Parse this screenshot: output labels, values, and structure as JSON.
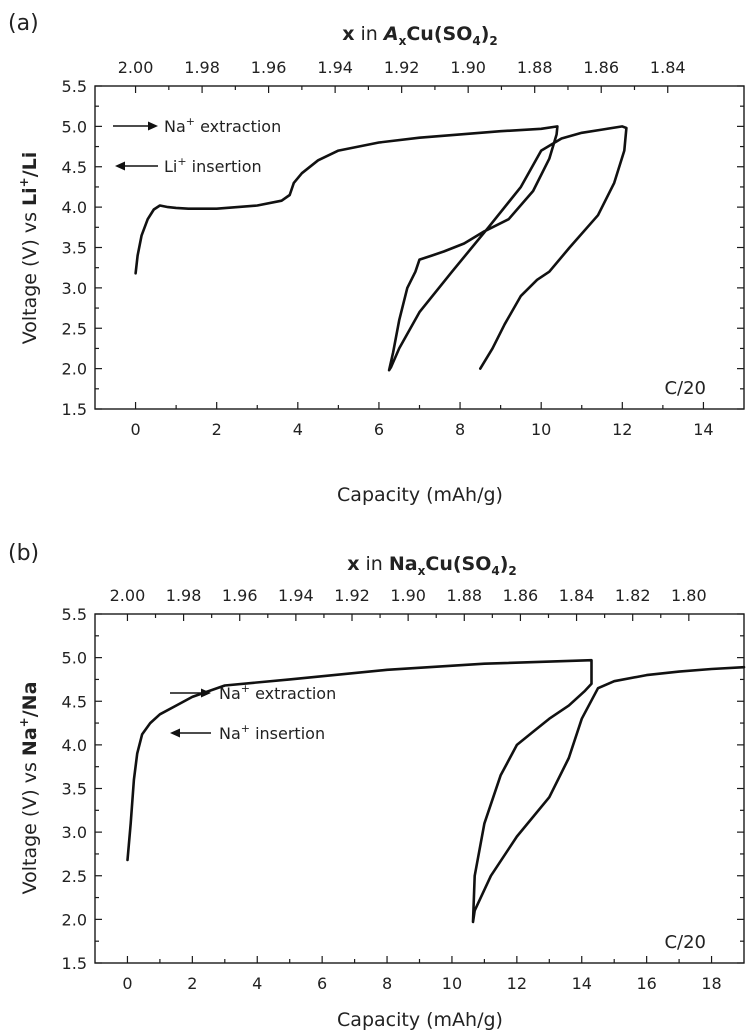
{
  "chart_data": [
    {
      "type": "line",
      "panel_label": "(a)",
      "xlabel": "Capacity (mAh/g)",
      "ylabel": {
        "prefix": "Voltage (V) vs ",
        "ion": "Li",
        "sup": "+",
        "suffix": "/Li"
      },
      "xlim": [
        -1.0,
        15.0
      ],
      "ylim": [
        1.5,
        5.5
      ],
      "x_ticks": [
        0,
        2,
        4,
        6,
        8,
        10,
        12,
        14
      ],
      "y_ticks": [
        1.5,
        2.0,
        2.5,
        3.0,
        3.5,
        4.0,
        4.5,
        5.0,
        5.5
      ],
      "top_axis": {
        "title_prefix": "x",
        "title_in": " in ",
        "title_ion": "A",
        "title_sub": "x",
        "title_rest": "Cu(SO",
        "title_sub2": "4",
        "title_close": ")",
        "title_sub3": "2",
        "ticks": [
          "2.00",
          "1.98",
          "1.96",
          "1.94",
          "1.92",
          "1.90",
          "1.88",
          "1.86",
          "1.84"
        ],
        "tick_positions": [
          0.0,
          1.64,
          3.28,
          4.92,
          6.56,
          8.2,
          9.84,
          11.48,
          13.12
        ]
      },
      "legend": [
        {
          "direction": "right",
          "ion": "Na",
          "sup": "+",
          "text": " extraction"
        },
        {
          "direction": "left",
          "ion": "Li",
          "sup": "+",
          "text": " insertion"
        }
      ],
      "legend_position": "top-left",
      "rate_label": "C/20",
      "series": [
        {
          "x": [
            0.0,
            0.05,
            0.15,
            0.3,
            0.45,
            0.6,
            0.8,
            1.0,
            1.3,
            2.0,
            3.0,
            3.6,
            3.8,
            3.9,
            4.1,
            4.5,
            5.0,
            6.0,
            7.0,
            8.0,
            9.0,
            10.0,
            10.4,
            10.38,
            10.2,
            9.8,
            9.2,
            8.6,
            8.1,
            7.6,
            7.3,
            7.0,
            6.9,
            6.7,
            6.5,
            6.35,
            6.25,
            6.3,
            6.5,
            7.0,
            7.8,
            8.7,
            9.5,
            10.0,
            10.5,
            11.0,
            11.5,
            12.0,
            12.1,
            12.05,
            11.8,
            11.4,
            10.7,
            10.2,
            9.9,
            9.5,
            9.1,
            8.8,
            8.5
          ],
          "y": [
            3.18,
            3.4,
            3.65,
            3.85,
            3.97,
            4.02,
            4.0,
            3.99,
            3.98,
            3.98,
            4.02,
            4.08,
            4.15,
            4.3,
            4.42,
            4.58,
            4.7,
            4.8,
            4.86,
            4.9,
            4.94,
            4.97,
            5.0,
            4.9,
            4.6,
            4.2,
            3.85,
            3.7,
            3.55,
            3.45,
            3.4,
            3.35,
            3.2,
            3.0,
            2.6,
            2.2,
            1.98,
            2.02,
            2.25,
            2.7,
            3.2,
            3.75,
            4.25,
            4.7,
            4.85,
            4.92,
            4.96,
            5.0,
            4.98,
            4.7,
            4.3,
            3.9,
            3.5,
            3.2,
            3.1,
            2.9,
            2.55,
            2.25,
            2.0
          ]
        }
      ]
    },
    {
      "type": "line",
      "panel_label": "(b)",
      "xlabel": "Capacity (mAh/g)",
      "ylabel": {
        "prefix": "Voltage (V) vs ",
        "ion": "Na",
        "sup": "+",
        "suffix": "/Na"
      },
      "xlim": [
        -1.0,
        19.0
      ],
      "ylim": [
        1.5,
        5.5
      ],
      "x_ticks": [
        0,
        2,
        4,
        6,
        8,
        10,
        12,
        14,
        16,
        18
      ],
      "y_ticks": [
        1.5,
        2.0,
        2.5,
        3.0,
        3.5,
        4.0,
        4.5,
        5.0,
        5.5
      ],
      "top_axis": {
        "title_prefix": "x",
        "title_in": " in ",
        "title_ion": "Na",
        "title_sub": "x",
        "title_rest": "Cu(SO",
        "title_sub2": "4",
        "title_close": ")",
        "title_sub3": "2",
        "ticks": [
          "2.00",
          "1.98",
          "1.96",
          "1.94",
          "1.92",
          "1.90",
          "1.88",
          "1.86",
          "1.84",
          "1.82",
          "1.80"
        ],
        "tick_positions": [
          0.0,
          1.73,
          3.46,
          5.19,
          6.92,
          8.65,
          10.38,
          12.11,
          13.84,
          15.57,
          17.3
        ]
      },
      "legend": [
        {
          "direction": "right",
          "ion": "Na",
          "sup": "+",
          "text": " extraction"
        },
        {
          "direction": "left",
          "ion": "Na",
          "sup": "+",
          "text": " insertion"
        }
      ],
      "legend_position": "top-left",
      "rate_label": "C/20",
      "series": [
        {
          "x": [
            0.0,
            0.1,
            0.2,
            0.3,
            0.45,
            0.7,
            1.0,
            1.5,
            2.0,
            3.0,
            5.0,
            8.0,
            11.0,
            14.3,
            14.3,
            14.1,
            13.6,
            13.0,
            12.5,
            12.0,
            11.5,
            11.0,
            10.7,
            10.65,
            10.7,
            11.2,
            12.0,
            13.0,
            13.6,
            14.0,
            14.5,
            15.0,
            16.0,
            17.0,
            18.0,
            19.0
          ],
          "y": [
            2.68,
            3.1,
            3.6,
            3.9,
            4.12,
            4.25,
            4.35,
            4.45,
            4.55,
            4.68,
            4.75,
            4.86,
            4.93,
            4.97,
            4.7,
            4.62,
            4.45,
            4.3,
            4.15,
            4.0,
            3.65,
            3.1,
            2.5,
            1.97,
            2.1,
            2.5,
            2.95,
            3.4,
            3.85,
            4.3,
            4.65,
            4.73,
            4.8,
            4.84,
            4.87,
            4.89
          ]
        }
      ]
    }
  ]
}
